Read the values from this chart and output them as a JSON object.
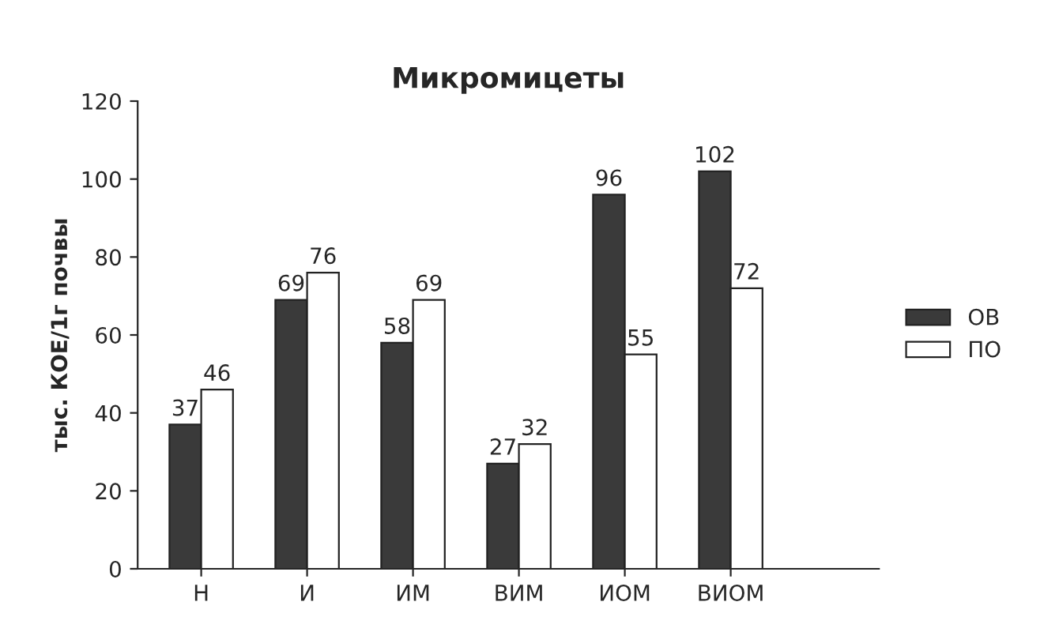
{
  "chart_data": {
    "type": "bar",
    "title": "Микромицеты",
    "ylabel": "тыс. КОЕ/1г почвы",
    "categories": [
      "Н",
      "И",
      "ИМ",
      "ВИМ",
      "ИОМ",
      "ВИОМ"
    ],
    "series": [
      {
        "name": "ОВ",
        "color": "#3a3a3a",
        "values": [
          37,
          69,
          58,
          27,
          96,
          102
        ]
      },
      {
        "name": "ПО",
        "color": "#ffffff",
        "values": [
          46,
          76,
          69,
          32,
          55,
          72
        ]
      }
    ],
    "ylim": [
      0,
      120
    ],
    "yticks": [
      0,
      20,
      40,
      60,
      80,
      100,
      120
    ],
    "data_labels": true,
    "legend": "right",
    "grid": false
  }
}
